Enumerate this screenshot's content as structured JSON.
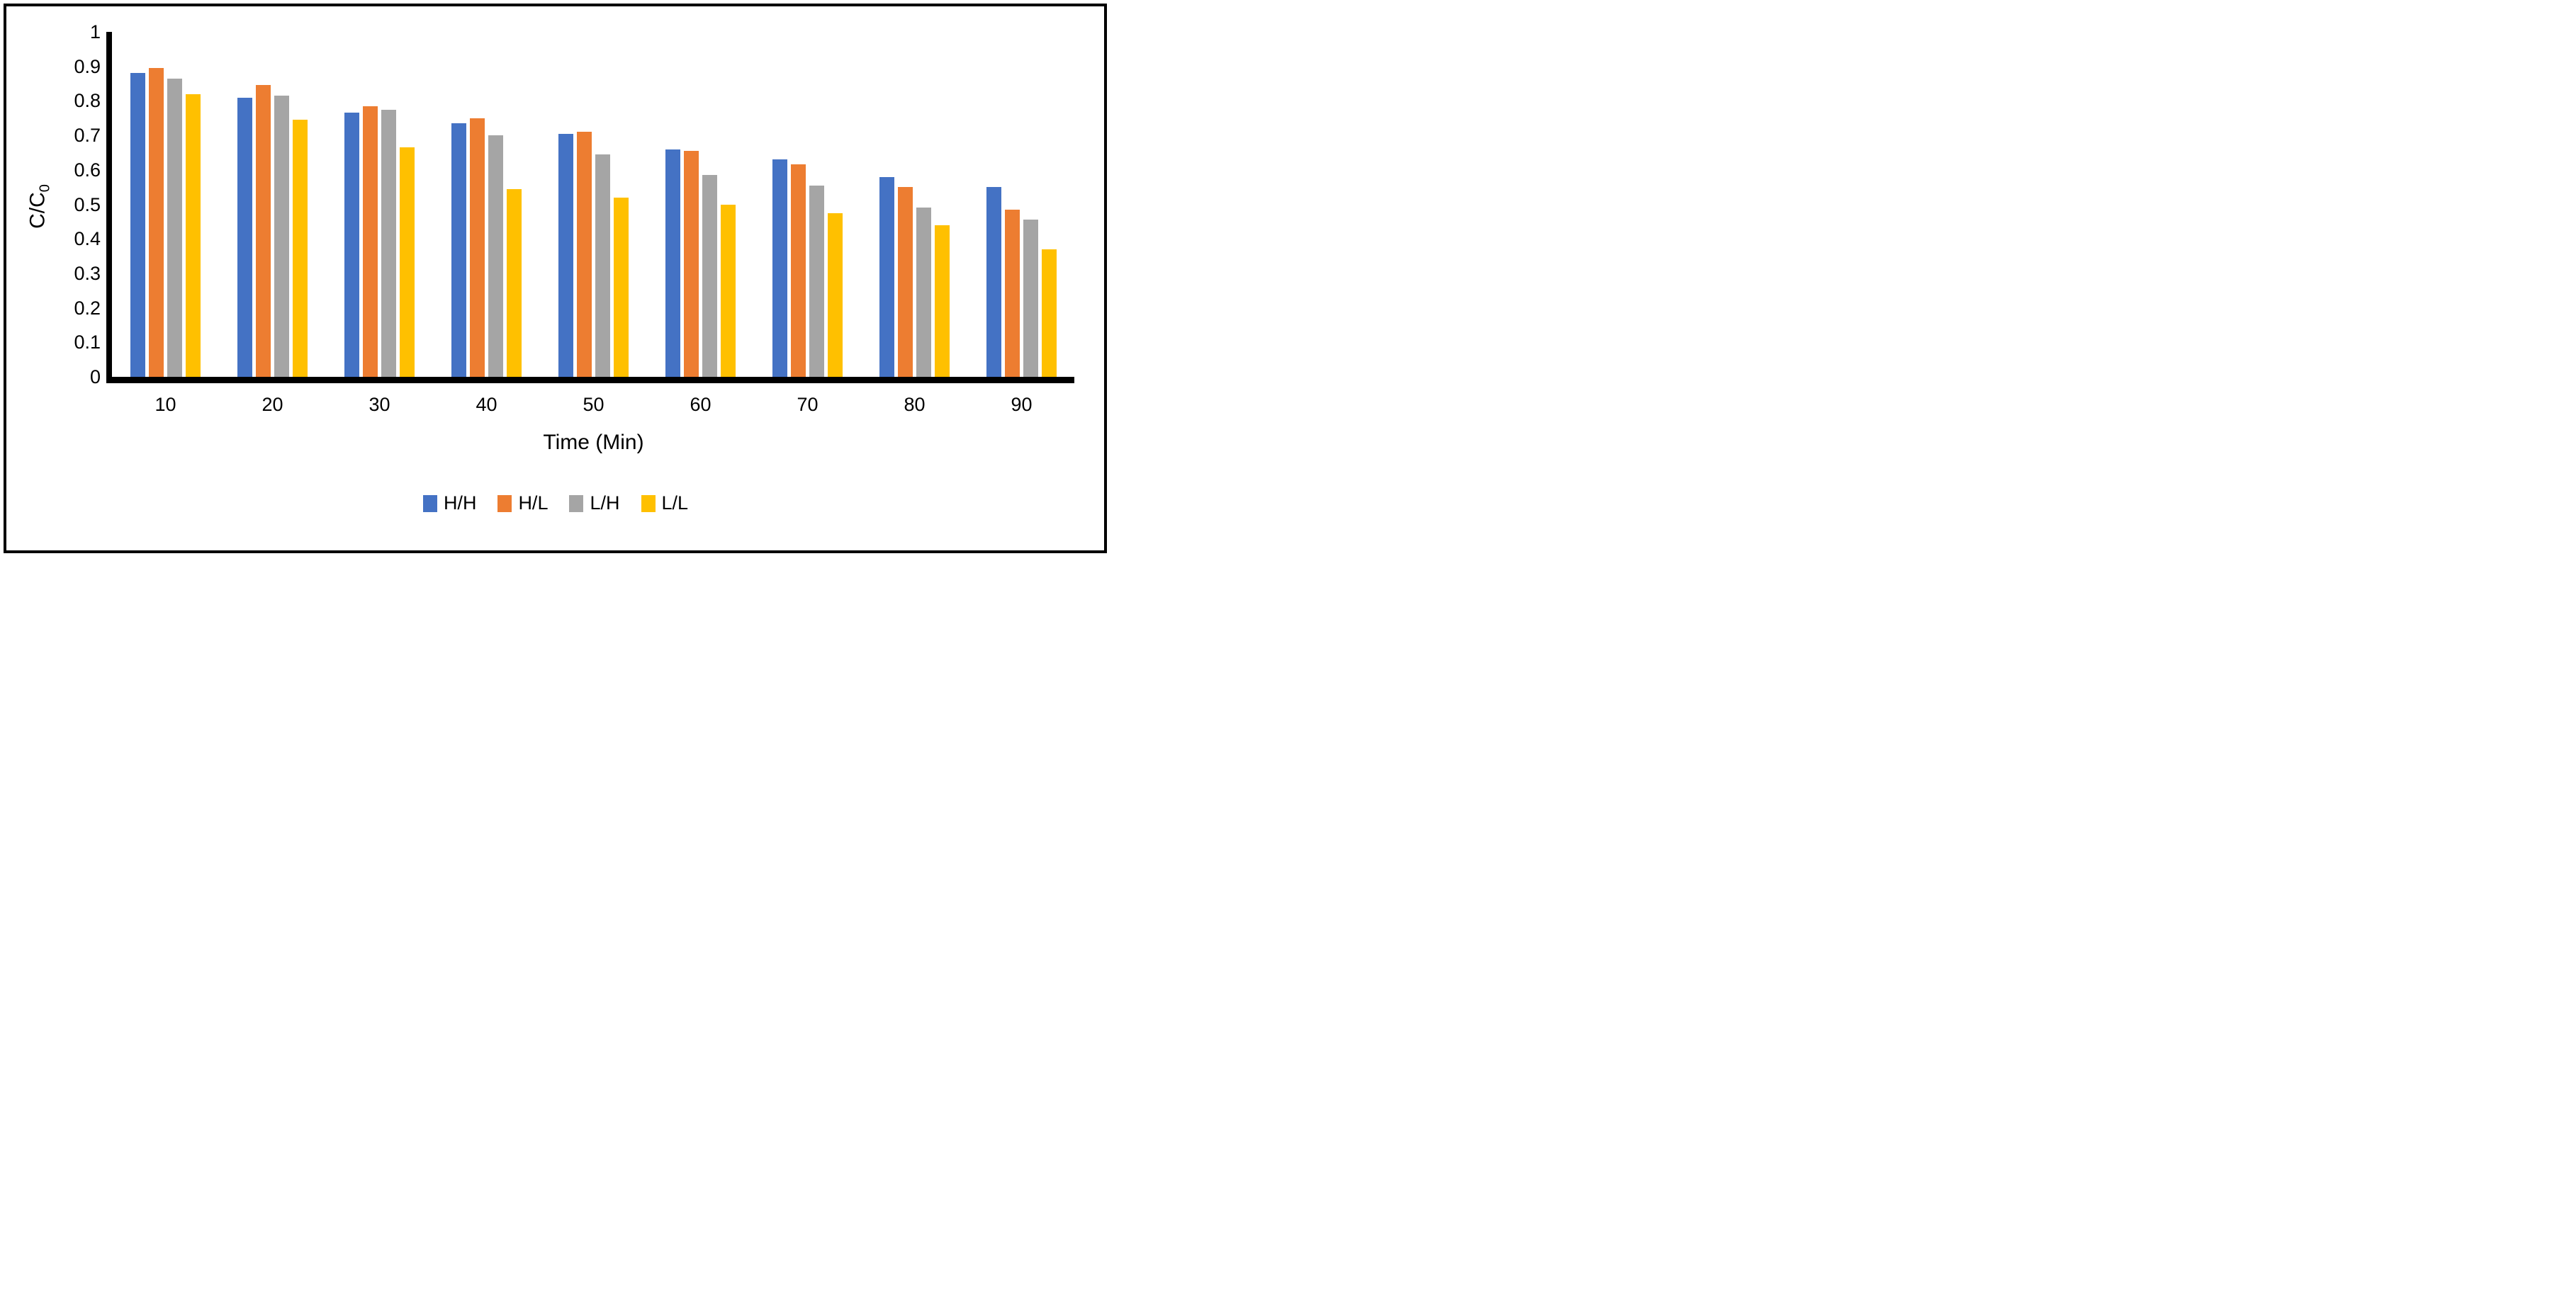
{
  "figure": {
    "y_axis_title": {
      "text": "C/C",
      "sub": "0"
    },
    "x_axis_title": "Time (Min)",
    "y_ticks": [
      "1",
      "0.9",
      "0.8",
      "0.7",
      "0.6",
      "0.5",
      "0.4",
      "0.3",
      "0.2",
      "0.1",
      "0"
    ]
  },
  "colors": {
    "axis": "#000000",
    "frame": "#000000",
    "background": "#ffffff",
    "series_blue": "#4472C4",
    "series_orange": "#ED7D31",
    "series_gray": "#A5A5A5",
    "series_yellow": "#FFC000"
  },
  "chart_data": {
    "type": "bar",
    "title": "",
    "categories": [
      "10",
      "20",
      "30",
      "40",
      "50",
      "60",
      "70",
      "80",
      "90"
    ],
    "series": [
      {
        "name": "H/H",
        "color": "#4472C4",
        "values": [
          0.88,
          0.81,
          0.765,
          0.735,
          0.705,
          0.66,
          0.63,
          0.58,
          0.55
        ]
      },
      {
        "name": "H/L",
        "color": "#ED7D31",
        "values": [
          0.895,
          0.845,
          0.785,
          0.75,
          0.71,
          0.655,
          0.615,
          0.55,
          0.485
        ]
      },
      {
        "name": "L/H",
        "color": "#A5A5A5",
        "values": [
          0.865,
          0.815,
          0.775,
          0.7,
          0.645,
          0.585,
          0.555,
          0.49,
          0.455
        ]
      },
      {
        "name": "L/L",
        "color": "#FFC000",
        "values": [
          0.82,
          0.745,
          0.665,
          0.545,
          0.52,
          0.5,
          0.475,
          0.44,
          0.37
        ]
      }
    ],
    "xlabel": "Time (Min)",
    "ylabel": "C/C0",
    "ylim": [
      0,
      1
    ],
    "ytick_step": 0.1,
    "grid": false,
    "legend_position": "bottom"
  }
}
